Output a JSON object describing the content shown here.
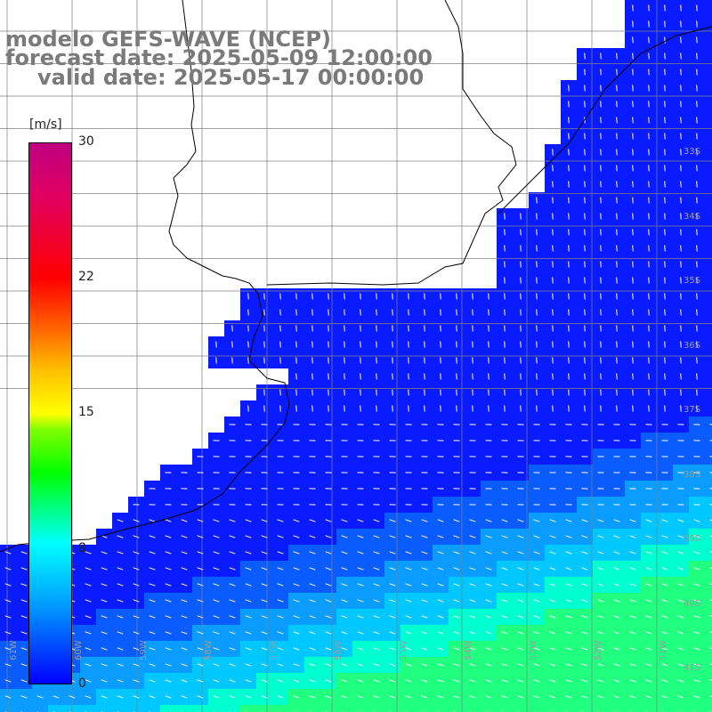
{
  "title": {
    "line1": "modelo GEFS-WAVE (NCEP)",
    "line2": "forecast date: 2025-05-09 12:00:00",
    "line3": "valid date: 2025-05-17 00:00:00"
  },
  "colorbar": {
    "unit": "[m/s]",
    "ticks": [
      "30",
      "22",
      "15",
      "8",
      "0"
    ]
  },
  "lat_labels": [
    "33S",
    "34S",
    "35S",
    "36S",
    "37S",
    "38S",
    "39S",
    "40S",
    "41S"
  ],
  "lon_labels": [
    "61W",
    "60W",
    "59W",
    "58W",
    "57W",
    "56W",
    "55W",
    "54W",
    "53W",
    "52W",
    "51W"
  ],
  "colors": {
    "ocean_min": "#0000ff",
    "ocean_mid": "#00a0ff",
    "ocean_high": "#00ffa0",
    "land": "#ffffff",
    "arrows": "#ffffff",
    "grid": "#808080",
    "coast": "#000000"
  }
}
